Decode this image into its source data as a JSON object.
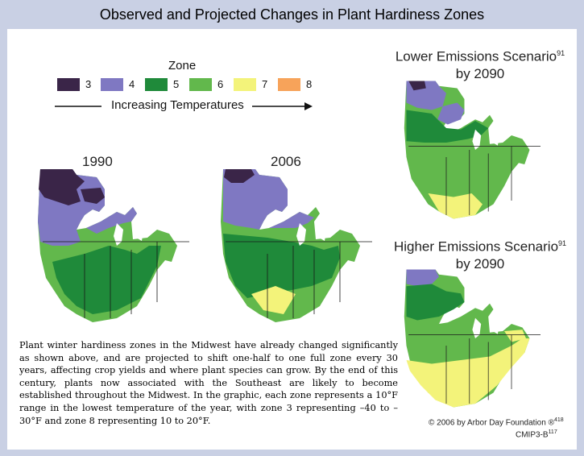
{
  "title": "Observed and Projected Changes in Plant Hardiness Zones",
  "legend": {
    "title": "Zone",
    "items": [
      {
        "label": "3",
        "color": "#3a2548"
      },
      {
        "label": "4",
        "color": "#7f78c2"
      },
      {
        "label": "5",
        "color": "#1f8a3a"
      },
      {
        "label": "6",
        "color": "#62b84c"
      },
      {
        "label": "7",
        "color": "#f3f37a"
      },
      {
        "label": "8",
        "color": "#f7a35a"
      }
    ],
    "arrow_text": "Increasing Temperatures"
  },
  "maps": [
    {
      "label": "1990"
    },
    {
      "label": "2006"
    }
  ],
  "scenarios": {
    "lower": {
      "line1": "Lower Emissions Scenario",
      "ref": "91",
      "line2": "by 2090"
    },
    "higher": {
      "line1": "Higher Emissions Scenario",
      "ref": "91",
      "line2": "by 2090"
    }
  },
  "description": "Plant winter hardiness zones in the Midwest have already changed significantly as shown above, and are projected to shift one-half to one full zone every 30 years, affecting crop yields and where plant species can grow. By the end of this century, plants now associated with the Southeast are likely to become established throughout the Midwest. In the graphic, each zone represents a 10°F range in the lowest temperature of the year, with zone 3 representing –40 to –30°F and zone 8 representing 10 to 20°F.",
  "credit": {
    "text": "© 2006 by Arbor Day Foundation ®",
    "ref": "418"
  },
  "code": {
    "text": "CMIP3-B",
    "ref": "117"
  }
}
